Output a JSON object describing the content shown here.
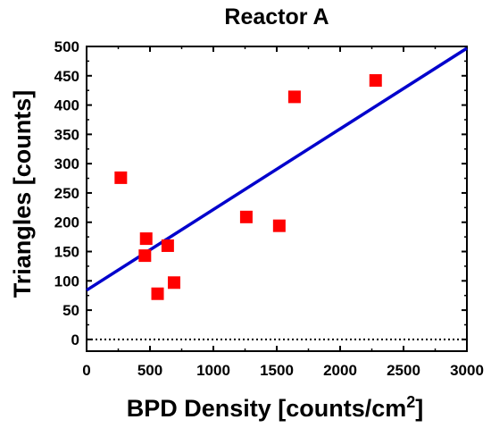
{
  "chart_data": {
    "type": "scatter",
    "title": "Reactor A",
    "xlabel": "BPD Density [counts/cm",
    "xlabel_superscript": "2",
    "xlabel_suffix": "]",
    "ylabel": "Triangles [counts]",
    "xlim": [
      0,
      3000
    ],
    "ylim": [
      -20,
      500
    ],
    "x_ticks": [
      0,
      500,
      1000,
      1500,
      2000,
      2500,
      3000
    ],
    "y_ticks": [
      0,
      50,
      100,
      150,
      200,
      250,
      300,
      350,
      400,
      450,
      500
    ],
    "grid": false,
    "series": [
      {
        "marker": "square",
        "color": "#ff0000",
        "points": [
          {
            "x": 270,
            "y": 276
          },
          {
            "x": 470,
            "y": 172
          },
          {
            "x": 460,
            "y": 143
          },
          {
            "x": 560,
            "y": 78
          },
          {
            "x": 640,
            "y": 160
          },
          {
            "x": 690,
            "y": 97
          },
          {
            "x": 1260,
            "y": 209
          },
          {
            "x": 1520,
            "y": 194
          },
          {
            "x": 1640,
            "y": 414
          },
          {
            "x": 2280,
            "y": 442
          }
        ]
      }
    ],
    "fit_line": {
      "color": "#0000cc",
      "points": [
        {
          "x": 0,
          "y": 84
        },
        {
          "x": 3000,
          "y": 497
        }
      ]
    },
    "zero_line": {
      "y": 0,
      "style": "dotted",
      "color": "#000000"
    }
  }
}
